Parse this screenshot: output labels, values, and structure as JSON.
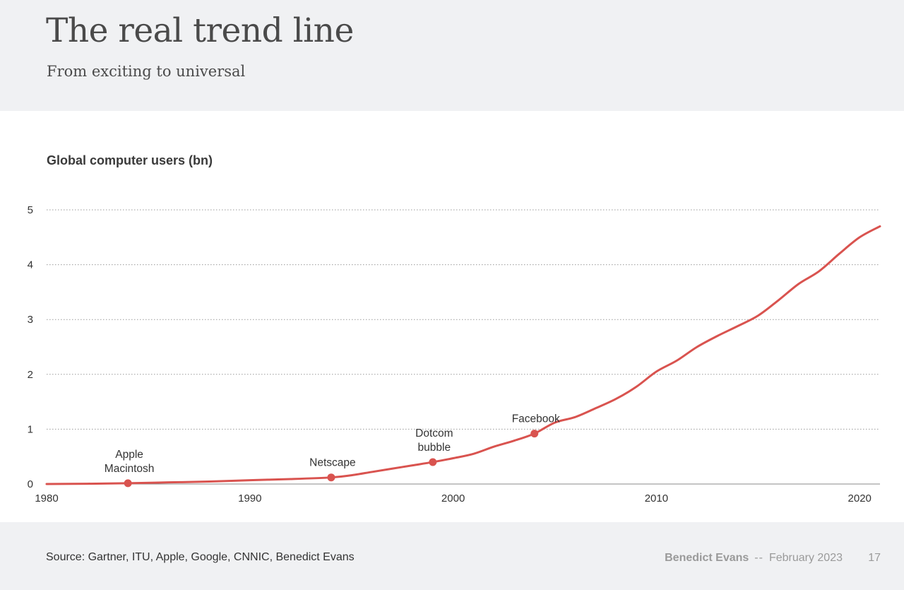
{
  "slide": {
    "title": "The real trend line",
    "subtitle": "From exciting to universal"
  },
  "footer": {
    "source": "Source: Gartner, ITU, Apple, Google, CNNIC, Benedict Evans",
    "author": "Benedict Evans",
    "separator": "--",
    "date": "February 2023",
    "page_number": "17"
  },
  "chart_data": {
    "type": "line",
    "title": "Global computer users (bn)",
    "xlabel": "",
    "ylabel": "",
    "xlim": [
      1980,
      2021
    ],
    "ylim": [
      0,
      5
    ],
    "x_ticks": [
      1980,
      1990,
      2000,
      2010,
      2020
    ],
    "y_ticks": [
      0,
      1,
      2,
      3,
      4,
      5
    ],
    "grid": "horizontal dotted",
    "line_color": "#d9534f",
    "series": [
      {
        "x": [
          1980,
          1982,
          1984,
          1986,
          1988,
          1990,
          1992,
          1994,
          1995,
          1996,
          1997,
          1998,
          1999,
          2000,
          2001,
          2002,
          2003,
          2004,
          2005,
          2006,
          2007,
          2008,
          2009,
          2010,
          2011,
          2012,
          2013,
          2014,
          2015,
          2016,
          2017,
          2018,
          2019,
          2020,
          2021
        ],
        "values": [
          0.0,
          0.005,
          0.015,
          0.03,
          0.045,
          0.07,
          0.09,
          0.12,
          0.16,
          0.22,
          0.28,
          0.34,
          0.4,
          0.47,
          0.55,
          0.68,
          0.79,
          0.92,
          1.12,
          1.22,
          1.38,
          1.55,
          1.77,
          2.05,
          2.25,
          2.5,
          2.7,
          2.88,
          3.07,
          3.35,
          3.65,
          3.88,
          4.2,
          4.5,
          4.7
        ]
      }
    ],
    "annotations": [
      {
        "x": 1984,
        "y": 0.015,
        "lines": [
          "Apple",
          "Macintosh"
        ]
      },
      {
        "x": 1994,
        "y": 0.12,
        "lines": [
          "Netscape"
        ]
      },
      {
        "x": 1999,
        "y": 0.4,
        "lines": [
          "Dotcom",
          "bubble"
        ]
      },
      {
        "x": 2004,
        "y": 0.92,
        "lines": [
          "Facebook"
        ]
      }
    ]
  }
}
